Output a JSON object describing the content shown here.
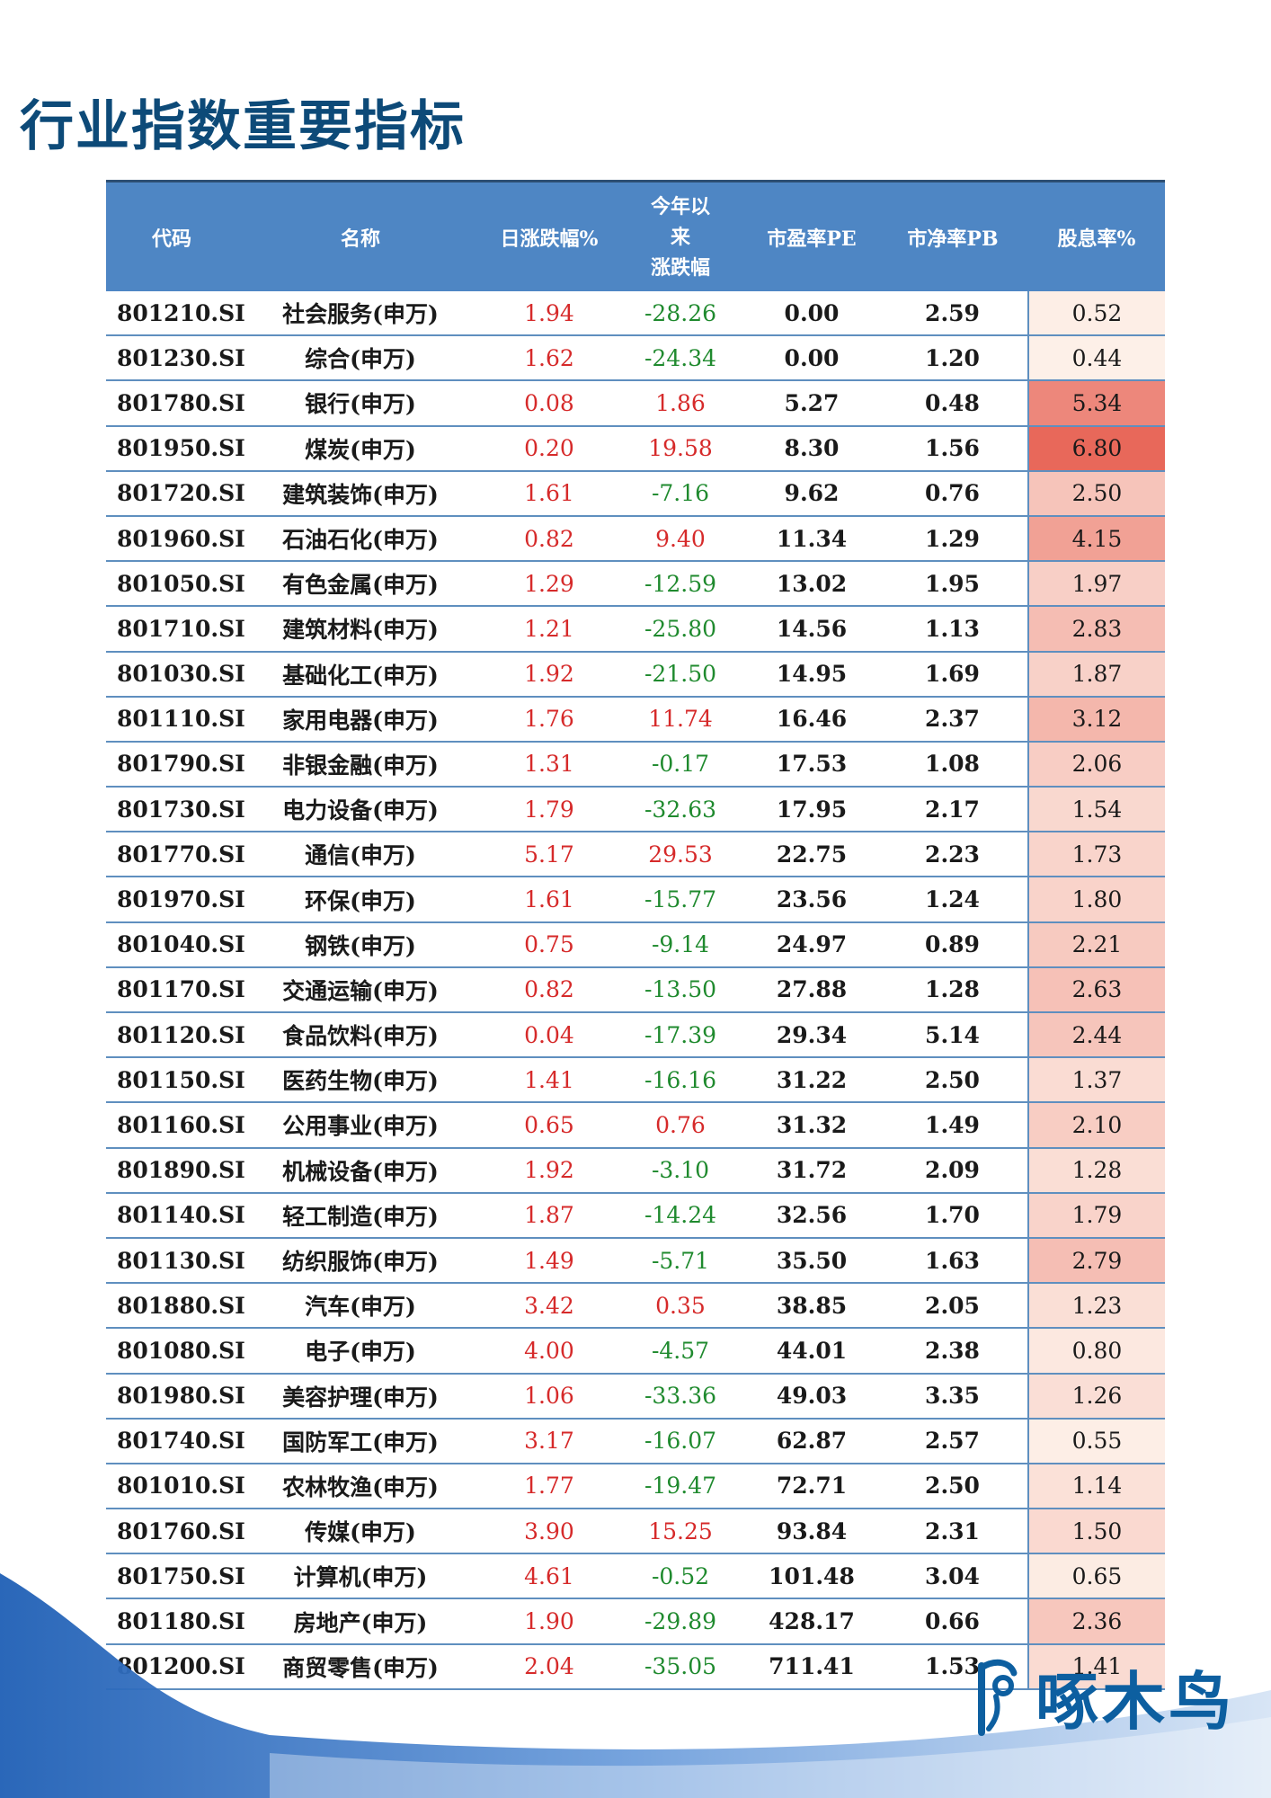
{
  "page": {
    "title": "行业指数重要指标"
  },
  "table": {
    "headers": {
      "code": "代码",
      "name": "名称",
      "daily": "日涨跌幅%",
      "ytd_line1": "今年以",
      "ytd_line2": "来",
      "ytd_line3": "涨跌幅",
      "pe": "市盈率PE",
      "pb": "市净率PB",
      "div": "股息率%"
    },
    "rows": [
      {
        "code": "801210.SI",
        "name": "社会服务(申万)",
        "daily": "1.94",
        "ytd": "-28.26",
        "pe": "0.00",
        "pb": "2.59",
        "div": "0.52"
      },
      {
        "code": "801230.SI",
        "name": "综合(申万)",
        "daily": "1.62",
        "ytd": "-24.34",
        "pe": "0.00",
        "pb": "1.20",
        "div": "0.44"
      },
      {
        "code": "801780.SI",
        "name": "银行(申万)",
        "daily": "0.08",
        "ytd": "1.86",
        "pe": "5.27",
        "pb": "0.48",
        "div": "5.34"
      },
      {
        "code": "801950.SI",
        "name": "煤炭(申万)",
        "daily": "0.20",
        "ytd": "19.58",
        "pe": "8.30",
        "pb": "1.56",
        "div": "6.80"
      },
      {
        "code": "801720.SI",
        "name": "建筑装饰(申万)",
        "daily": "1.61",
        "ytd": "-7.16",
        "pe": "9.62",
        "pb": "0.76",
        "div": "2.50"
      },
      {
        "code": "801960.SI",
        "name": "石油石化(申万)",
        "daily": "0.82",
        "ytd": "9.40",
        "pe": "11.34",
        "pb": "1.29",
        "div": "4.15"
      },
      {
        "code": "801050.SI",
        "name": "有色金属(申万)",
        "daily": "1.29",
        "ytd": "-12.59",
        "pe": "13.02",
        "pb": "1.95",
        "div": "1.97"
      },
      {
        "code": "801710.SI",
        "name": "建筑材料(申万)",
        "daily": "1.21",
        "ytd": "-25.80",
        "pe": "14.56",
        "pb": "1.13",
        "div": "2.83"
      },
      {
        "code": "801030.SI",
        "name": "基础化工(申万)",
        "daily": "1.92",
        "ytd": "-21.50",
        "pe": "14.95",
        "pb": "1.69",
        "div": "1.87"
      },
      {
        "code": "801110.SI",
        "name": "家用电器(申万)",
        "daily": "1.76",
        "ytd": "11.74",
        "pe": "16.46",
        "pb": "2.37",
        "div": "3.12"
      },
      {
        "code": "801790.SI",
        "name": "非银金融(申万)",
        "daily": "1.31",
        "ytd": "-0.17",
        "pe": "17.53",
        "pb": "1.08",
        "div": "2.06"
      },
      {
        "code": "801730.SI",
        "name": "电力设备(申万)",
        "daily": "1.79",
        "ytd": "-32.63",
        "pe": "17.95",
        "pb": "2.17",
        "div": "1.54"
      },
      {
        "code": "801770.SI",
        "name": "通信(申万)",
        "daily": "5.17",
        "ytd": "29.53",
        "pe": "22.75",
        "pb": "2.23",
        "div": "1.73"
      },
      {
        "code": "801970.SI",
        "name": "环保(申万)",
        "daily": "1.61",
        "ytd": "-15.77",
        "pe": "23.56",
        "pb": "1.24",
        "div": "1.80"
      },
      {
        "code": "801040.SI",
        "name": "钢铁(申万)",
        "daily": "0.75",
        "ytd": "-9.14",
        "pe": "24.97",
        "pb": "0.89",
        "div": "2.21"
      },
      {
        "code": "801170.SI",
        "name": "交通运输(申万)",
        "daily": "0.82",
        "ytd": "-13.50",
        "pe": "27.88",
        "pb": "1.28",
        "div": "2.63"
      },
      {
        "code": "801120.SI",
        "name": "食品饮料(申万)",
        "daily": "0.04",
        "ytd": "-17.39",
        "pe": "29.34",
        "pb": "5.14",
        "div": "2.44"
      },
      {
        "code": "801150.SI",
        "name": "医药生物(申万)",
        "daily": "1.41",
        "ytd": "-16.16",
        "pe": "31.22",
        "pb": "2.50",
        "div": "1.37"
      },
      {
        "code": "801160.SI",
        "name": "公用事业(申万)",
        "daily": "0.65",
        "ytd": "0.76",
        "pe": "31.32",
        "pb": "1.49",
        "div": "2.10"
      },
      {
        "code": "801890.SI",
        "name": "机械设备(申万)",
        "daily": "1.92",
        "ytd": "-3.10",
        "pe": "31.72",
        "pb": "2.09",
        "div": "1.28"
      },
      {
        "code": "801140.SI",
        "name": "轻工制造(申万)",
        "daily": "1.87",
        "ytd": "-14.24",
        "pe": "32.56",
        "pb": "1.70",
        "div": "1.79"
      },
      {
        "code": "801130.SI",
        "name": "纺织服饰(申万)",
        "daily": "1.49",
        "ytd": "-5.71",
        "pe": "35.50",
        "pb": "1.63",
        "div": "2.79"
      },
      {
        "code": "801880.SI",
        "name": "汽车(申万)",
        "daily": "3.42",
        "ytd": "0.35",
        "pe": "38.85",
        "pb": "2.05",
        "div": "1.23"
      },
      {
        "code": "801080.SI",
        "name": "电子(申万)",
        "daily": "4.00",
        "ytd": "-4.57",
        "pe": "44.01",
        "pb": "2.38",
        "div": "0.80"
      },
      {
        "code": "801980.SI",
        "name": "美容护理(申万)",
        "daily": "1.06",
        "ytd": "-33.36",
        "pe": "49.03",
        "pb": "3.35",
        "div": "1.26"
      },
      {
        "code": "801740.SI",
        "name": "国防军工(申万)",
        "daily": "3.17",
        "ytd": "-16.07",
        "pe": "62.87",
        "pb": "2.57",
        "div": "0.55"
      },
      {
        "code": "801010.SI",
        "name": "农林牧渔(申万)",
        "daily": "1.77",
        "ytd": "-19.47",
        "pe": "72.71",
        "pb": "2.50",
        "div": "1.14"
      },
      {
        "code": "801760.SI",
        "name": "传媒(申万)",
        "daily": "3.90",
        "ytd": "15.25",
        "pe": "93.84",
        "pb": "2.31",
        "div": "1.50"
      },
      {
        "code": "801750.SI",
        "name": "计算机(申万)",
        "daily": "4.61",
        "ytd": "-0.52",
        "pe": "101.48",
        "pb": "3.04",
        "div": "0.65"
      },
      {
        "code": "801180.SI",
        "name": "房地产(申万)",
        "daily": "1.90",
        "ytd": "-29.89",
        "pe": "428.17",
        "pb": "0.66",
        "div": "2.36"
      },
      {
        "code": "801200.SI",
        "name": "商贸零售(申万)",
        "daily": "2.04",
        "ytd": "-35.05",
        "pe": "711.41",
        "pb": "1.53",
        "div": "1.41"
      }
    ]
  },
  "colors": {
    "header_bg": "#4e86c4",
    "title": "#0d4a78",
    "positive": "#d62a2a",
    "negative": "#1f8a2e",
    "heat_low": "#fdf0e8",
    "heat_high": "#e8685a"
  },
  "logo": {
    "text": "啄木鸟",
    "icon": "woodpecker-logo-icon"
  }
}
